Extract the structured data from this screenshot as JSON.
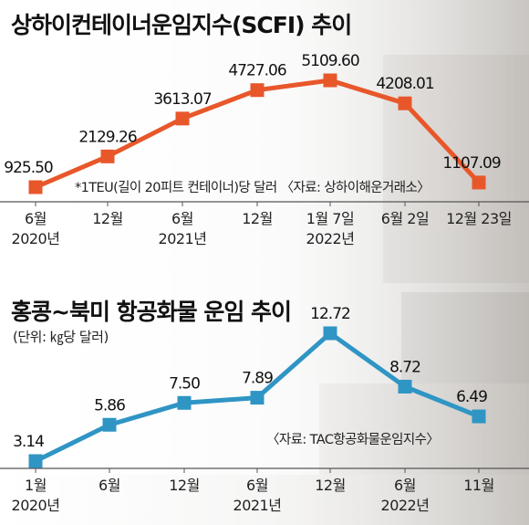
{
  "chart_data": [
    {
      "type": "line",
      "title": "상하이컨테이너운임지수(SCFI) 추이",
      "note": "*1TEU(길이 20피트 컨테이너)당 달러 〈자료: 상하이해운거래소〉",
      "color": "#e8572a",
      "x_labels": [
        [
          "6월",
          "2020년"
        ],
        [
          "12월",
          ""
        ],
        [
          "6월",
          "2021년"
        ],
        [
          "12월",
          ""
        ],
        [
          "1월 7일",
          "2022년"
        ],
        [
          "6월 2일",
          ""
        ],
        [
          "12월 23일",
          ""
        ]
      ],
      "values": [
        925.5,
        2129.26,
        3613.07,
        4727.06,
        5109.6,
        4208.01,
        1107.09
      ],
      "value_labels": [
        "925.50",
        "2129.26",
        "3613.07",
        "4727.06",
        "5109.60",
        "4208.01",
        "1107.09"
      ]
    },
    {
      "type": "line",
      "title": "홍콩~북미 항공화물 운임 추이",
      "unit": "(단위: ㎏당 달러)",
      "note": "〈자료: TAC항공화물운임지수〉",
      "color": "#2f95c4",
      "x_labels": [
        [
          "1월",
          "2020년"
        ],
        [
          "6월",
          ""
        ],
        [
          "12월",
          ""
        ],
        [
          "6월",
          "2021년"
        ],
        [
          "12월",
          ""
        ],
        [
          "6월",
          "2022년"
        ],
        [
          "11월",
          ""
        ]
      ],
      "values": [
        3.14,
        5.86,
        7.5,
        7.89,
        12.72,
        8.72,
        6.49
      ],
      "value_labels": [
        "3.14",
        "5.86",
        "7.50",
        "7.89",
        "12.72",
        "8.72",
        "6.49"
      ]
    }
  ]
}
